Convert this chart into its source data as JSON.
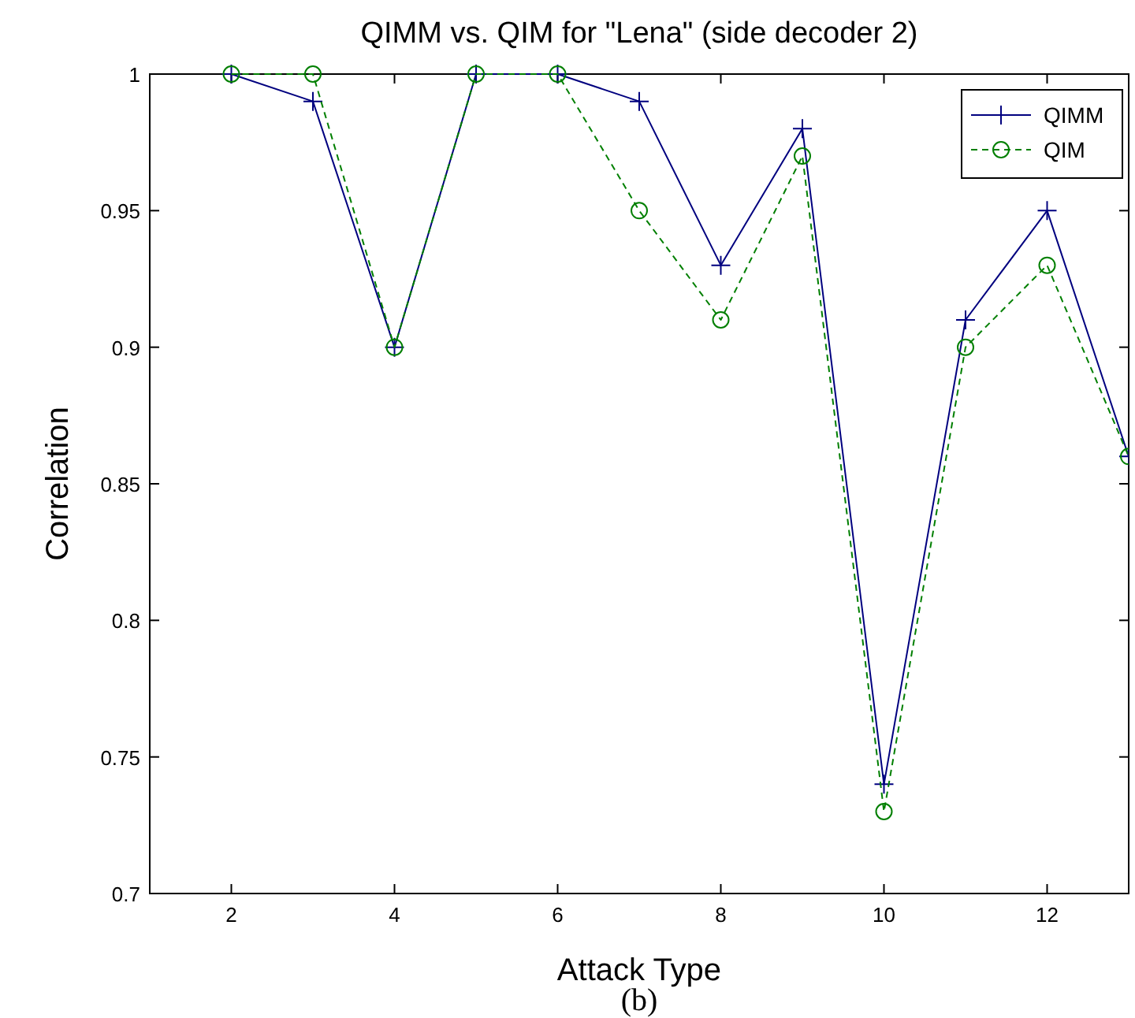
{
  "chart_data": {
    "type": "line",
    "title": "QIMM vs. QIM for \"Lena\" (side decoder 2)",
    "xlabel": "Attack Type",
    "ylabel": "Correlation",
    "annotations": [
      "(b)"
    ],
    "x": [
      2,
      3,
      4,
      5,
      6,
      7,
      8,
      9,
      10,
      11,
      12,
      13
    ],
    "series": [
      {
        "name": "QIMM",
        "color": "#00007f",
        "marker": "cross",
        "line_style": "solid",
        "values": [
          1,
          0.99,
          0.9,
          1,
          1,
          0.99,
          0.93,
          0.98,
          0.74,
          0.91,
          0.95,
          0.86
        ]
      },
      {
        "name": "QIM",
        "color": "#007f00",
        "marker": "circle",
        "line_style": "dashed",
        "values": [
          1,
          1,
          0.9,
          1,
          1,
          0.95,
          0.91,
          0.97,
          0.73,
          0.9,
          0.93,
          0.86
        ]
      }
    ],
    "xlim": [
      1,
      13
    ],
    "xticks": [
      2,
      4,
      6,
      8,
      10,
      12
    ],
    "ylim": [
      0.7,
      1
    ],
    "yticks": [
      0.7,
      {
        "value": 0.75,
        "label": "0.75"
      },
      {
        "value": 0.8,
        "label": "0.8"
      },
      {
        "value": 0.85,
        "label": "0.85"
      },
      {
        "value": 0.9,
        "label": "0.9"
      },
      {
        "value": 0.95,
        "label": "0.95"
      },
      1
    ],
    "legend": "top right",
    "grid": false
  }
}
